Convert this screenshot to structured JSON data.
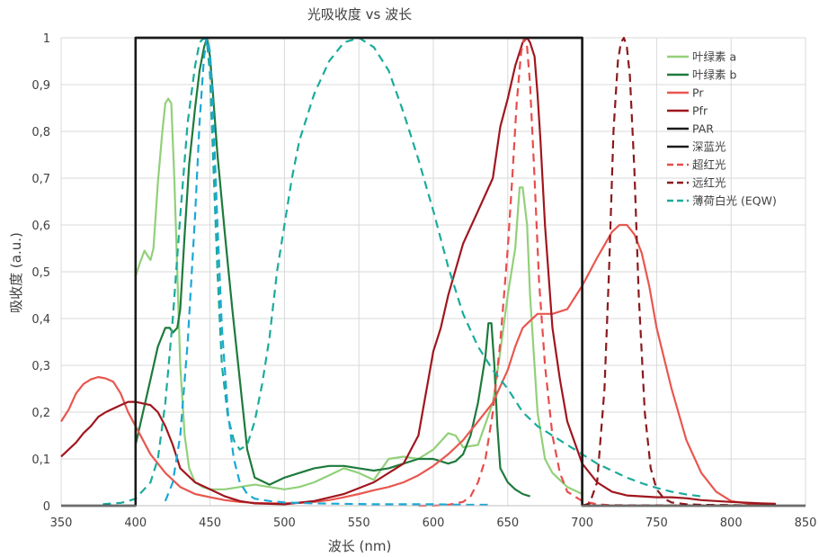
{
  "chart_data": {
    "type": "line",
    "title": "光吸收度 vs 波长",
    "xlabel": "波长 (nm)",
    "ylabel": "吸收度 (a.u.)",
    "xlim": [
      350,
      850
    ],
    "ylim": [
      0,
      1
    ],
    "x_ticks": [
      "350",
      "400",
      "450",
      "500",
      "550",
      "600",
      "650",
      "700",
      "750",
      "800",
      "850"
    ],
    "y_ticks": [
      "0",
      "0,1",
      "0,2",
      "0,3",
      "0,4",
      "0,5",
      "0,6",
      "0,7",
      "0,8",
      "0,9",
      "1"
    ],
    "grid": true,
    "legend_position": "right",
    "series": [
      {
        "name": "叶绿素 a",
        "color": "#92d07a",
        "dash": "solid",
        "x": [
          400,
          403,
          406,
          408,
          410,
          412,
          415,
          418,
          420,
          422,
          424,
          426,
          428,
          430,
          433,
          436,
          440,
          445,
          450,
          460,
          470,
          480,
          490,
          500,
          510,
          520,
          530,
          540,
          550,
          560,
          570,
          580,
          590,
          600,
          610,
          615,
          620,
          630,
          640,
          645,
          650,
          655,
          658,
          660,
          663,
          665,
          670,
          675,
          680,
          690,
          700
        ],
        "y": [
          0.49,
          0.52,
          0.545,
          0.535,
          0.525,
          0.55,
          0.69,
          0.8,
          0.86,
          0.87,
          0.86,
          0.7,
          0.5,
          0.3,
          0.15,
          0.08,
          0.05,
          0.04,
          0.035,
          0.035,
          0.04,
          0.045,
          0.04,
          0.035,
          0.04,
          0.05,
          0.065,
          0.08,
          0.07,
          0.055,
          0.1,
          0.105,
          0.1,
          0.12,
          0.155,
          0.15,
          0.125,
          0.13,
          0.22,
          0.33,
          0.45,
          0.55,
          0.68,
          0.68,
          0.6,
          0.45,
          0.2,
          0.1,
          0.07,
          0.04,
          0.025
        ]
      },
      {
        "name": "叶绿素 b",
        "color": "#1e7a3c",
        "dash": "solid",
        "x": [
          400,
          405,
          410,
          415,
          420,
          423,
          425,
          428,
          430,
          433,
          436,
          440,
          443,
          446,
          448,
          450,
          452,
          455,
          460,
          465,
          470,
          475,
          480,
          490,
          500,
          510,
          520,
          530,
          540,
          550,
          560,
          570,
          580,
          590,
          600,
          610,
          615,
          620,
          625,
          630,
          635,
          637,
          639,
          641,
          643,
          645,
          650,
          655,
          660,
          665
        ],
        "y": [
          0.13,
          0.2,
          0.27,
          0.34,
          0.38,
          0.38,
          0.37,
          0.38,
          0.42,
          0.58,
          0.73,
          0.85,
          0.93,
          0.98,
          1.0,
          0.96,
          0.88,
          0.75,
          0.58,
          0.42,
          0.27,
          0.12,
          0.06,
          0.045,
          0.06,
          0.07,
          0.08,
          0.085,
          0.085,
          0.08,
          0.075,
          0.08,
          0.09,
          0.1,
          0.1,
          0.09,
          0.095,
          0.11,
          0.15,
          0.22,
          0.32,
          0.39,
          0.39,
          0.3,
          0.17,
          0.08,
          0.05,
          0.035,
          0.025,
          0.02
        ]
      },
      {
        "name": "Pr",
        "color": "#e8574f",
        "dash": "solid",
        "x": [
          350,
          355,
          360,
          365,
          370,
          375,
          380,
          385,
          390,
          395,
          400,
          410,
          420,
          430,
          440,
          450,
          460,
          470,
          480,
          490,
          500,
          510,
          520,
          530,
          540,
          550,
          560,
          570,
          580,
          590,
          600,
          610,
          620,
          630,
          640,
          650,
          655,
          660,
          665,
          670,
          680,
          690,
          700,
          710,
          720,
          725,
          730,
          735,
          740,
          745,
          750,
          760,
          770,
          780,
          790,
          800,
          810,
          820,
          830
        ],
        "y": [
          0.18,
          0.205,
          0.24,
          0.26,
          0.27,
          0.275,
          0.272,
          0.265,
          0.24,
          0.2,
          0.17,
          0.11,
          0.07,
          0.04,
          0.025,
          0.018,
          0.012,
          0.008,
          0.006,
          0.005,
          0.005,
          0.006,
          0.008,
          0.012,
          0.018,
          0.025,
          0.033,
          0.04,
          0.05,
          0.065,
          0.085,
          0.11,
          0.14,
          0.18,
          0.22,
          0.29,
          0.34,
          0.38,
          0.395,
          0.41,
          0.41,
          0.42,
          0.47,
          0.53,
          0.585,
          0.6,
          0.6,
          0.58,
          0.54,
          0.47,
          0.38,
          0.25,
          0.14,
          0.07,
          0.03,
          0.01,
          0.005,
          0.003,
          0.002
        ]
      },
      {
        "name": "Pfr",
        "color": "#a0161e",
        "dash": "solid",
        "x": [
          350,
          355,
          360,
          365,
          370,
          375,
          380,
          390,
          395,
          400,
          410,
          415,
          420,
          425,
          430,
          440,
          450,
          460,
          470,
          480,
          500,
          520,
          540,
          560,
          580,
          590,
          600,
          605,
          610,
          620,
          630,
          640,
          645,
          650,
          655,
          660,
          663,
          665,
          668,
          670,
          672,
          675,
          680,
          685,
          690,
          700,
          710,
          720,
          730,
          740,
          750,
          760,
          770,
          780,
          790,
          800,
          820,
          830
        ],
        "y": [
          0.105,
          0.12,
          0.135,
          0.155,
          0.17,
          0.19,
          0.2,
          0.215,
          0.222,
          0.222,
          0.215,
          0.2,
          0.17,
          0.13,
          0.08,
          0.05,
          0.035,
          0.02,
          0.01,
          0.005,
          0.003,
          0.01,
          0.025,
          0.05,
          0.09,
          0.15,
          0.33,
          0.38,
          0.45,
          0.56,
          0.63,
          0.7,
          0.81,
          0.87,
          0.94,
          0.99,
          1.0,
          0.99,
          0.96,
          0.88,
          0.78,
          0.6,
          0.38,
          0.27,
          0.18,
          0.09,
          0.05,
          0.03,
          0.022,
          0.02,
          0.018,
          0.018,
          0.016,
          0.012,
          0.01,
          0.008,
          0.005,
          0.004
        ]
      },
      {
        "name": "PAR",
        "color": "#1a1a1a",
        "dash": "solid",
        "x": [
          350,
          400,
          400,
          700,
          700,
          850
        ],
        "y": [
          0,
          0,
          1,
          1,
          0,
          0
        ]
      },
      {
        "name": "深蓝光",
        "color": "#1a1a1a",
        "dash": "solid",
        "x": [
          400,
          400,
          700,
          700
        ],
        "y": [
          0,
          1,
          1,
          0
        ]
      },
      {
        "name": "超红光",
        "color": "#e84c4c",
        "dash": "dashed",
        "x": [
          590,
          600,
          610,
          620,
          625,
          630,
          635,
          640,
          645,
          650,
          653,
          656,
          659,
          661,
          663,
          665,
          668,
          671,
          675,
          680,
          685,
          690,
          700,
          710,
          720,
          830
        ],
        "y": [
          0,
          0,
          0.002,
          0.008,
          0.02,
          0.05,
          0.1,
          0.2,
          0.35,
          0.55,
          0.7,
          0.86,
          0.97,
          1.0,
          0.98,
          0.9,
          0.7,
          0.48,
          0.3,
          0.15,
          0.07,
          0.03,
          0.01,
          0.003,
          0.001,
          0
        ]
      },
      {
        "name": "远红光",
        "color": "#8b1a1e",
        "dash": "dashed",
        "x": [
          700,
          705,
          710,
          715,
          718,
          721,
          724,
          726,
          728,
          730,
          732,
          735,
          738,
          742,
          746,
          750,
          755,
          760,
          770,
          780,
          830
        ],
        "y": [
          0,
          0.005,
          0.05,
          0.25,
          0.5,
          0.8,
          0.95,
          0.99,
          1.0,
          0.98,
          0.92,
          0.72,
          0.45,
          0.2,
          0.08,
          0.035,
          0.015,
          0.007,
          0.003,
          0.002,
          0
        ]
      },
      {
        "name": "薄荷白光 (EQW)",
        "color": "#1aab9b",
        "dash": "dashed",
        "x": [
          378,
          385,
          390,
          395,
          400,
          410,
          415,
          420,
          425,
          430,
          435,
          440,
          443,
          446,
          448,
          450,
          452,
          455,
          458,
          462,
          466,
          470,
          475,
          480,
          485,
          490,
          495,
          500,
          505,
          510,
          520,
          530,
          540,
          550,
          560,
          570,
          580,
          590,
          600,
          610,
          620,
          630,
          640,
          650,
          660,
          670,
          680,
          690,
          700,
          710,
          720,
          730,
          740,
          750,
          760,
          770,
          780
        ],
        "y": [
          0.003,
          0.005,
          0.006,
          0.01,
          0.015,
          0.05,
          0.1,
          0.22,
          0.4,
          0.62,
          0.82,
          0.94,
          0.99,
          1.0,
          0.99,
          0.92,
          0.75,
          0.5,
          0.3,
          0.19,
          0.14,
          0.12,
          0.13,
          0.18,
          0.26,
          0.36,
          0.5,
          0.6,
          0.7,
          0.78,
          0.88,
          0.95,
          0.99,
          1.0,
          0.98,
          0.93,
          0.84,
          0.74,
          0.63,
          0.51,
          0.41,
          0.34,
          0.29,
          0.25,
          0.2,
          0.17,
          0.15,
          0.13,
          0.11,
          0.09,
          0.075,
          0.06,
          0.048,
          0.038,
          0.03,
          0.024,
          0.02
        ]
      },
      {
        "name": "",
        "color": "#1ba8d6",
        "dash": "dashed",
        "x": [
          420,
          425,
          430,
          435,
          440,
          443,
          446,
          448,
          450,
          452,
          455,
          458,
          462,
          466,
          470,
          475,
          480,
          490,
          500,
          520,
          540,
          560,
          580,
          600,
          620,
          640
        ],
        "y": [
          0.01,
          0.05,
          0.15,
          0.35,
          0.62,
          0.82,
          0.96,
          1.0,
          0.97,
          0.85,
          0.6,
          0.38,
          0.2,
          0.1,
          0.05,
          0.025,
          0.015,
          0.01,
          0.007,
          0.005,
          0.004,
          0.003,
          0.003,
          0.003,
          0.002,
          0.002
        ]
      }
    ]
  }
}
